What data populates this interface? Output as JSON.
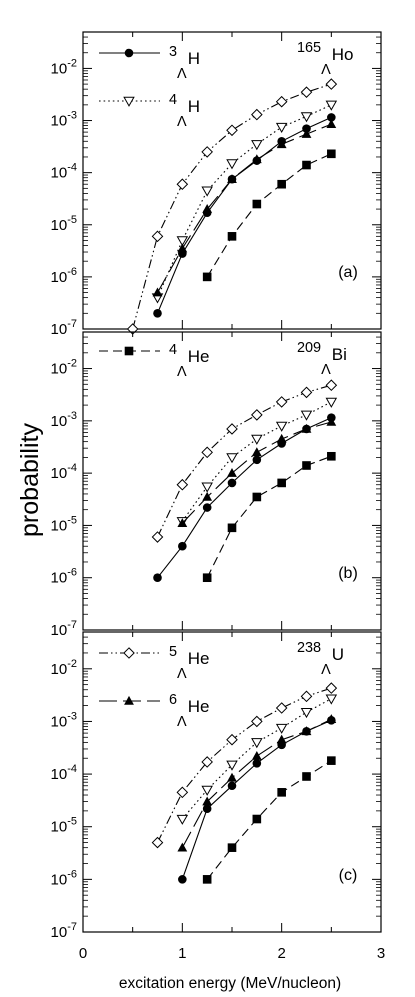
{
  "figure": {
    "ylabel": "probability",
    "xlabel": "excitation energy (MeV/nucleon)",
    "x_ticks": [
      "0",
      "1",
      "2",
      "3"
    ],
    "y_ticks": [
      {
        "mant": "10",
        "exp": "-7"
      },
      {
        "mant": "10",
        "exp": "-6"
      },
      {
        "mant": "10",
        "exp": "-5"
      },
      {
        "mant": "10",
        "exp": "-4"
      },
      {
        "mant": "10",
        "exp": "-3"
      },
      {
        "mant": "10",
        "exp": "-2"
      }
    ],
    "colors": {
      "ink": "#000000",
      "background": "#ffffff"
    }
  },
  "chart_data": [
    {
      "type": "line",
      "panel_label": "(a)",
      "nucleus": {
        "mass": "165",
        "lambda": "Λ",
        "symbol": "Ho"
      },
      "xlim": [
        0,
        3
      ],
      "ylim": [
        1e-07,
        0.05
      ],
      "yscale": "log",
      "legend": [
        {
          "series": "H3",
          "mass": "3",
          "lambda": "Λ",
          "symbol": "H"
        },
        {
          "series": "H4",
          "mass": "4",
          "lambda": "Λ",
          "symbol": "H"
        }
      ],
      "series": [
        {
          "key": "He5",
          "marker": "diamond-open",
          "dash": "dashdotdot",
          "x": [
            0.5,
            0.75,
            1.0,
            1.25,
            1.5,
            1.75,
            2.0,
            2.25,
            2.5
          ],
          "y": [
            1e-07,
            6e-06,
            6e-05,
            0.00025,
            0.00065,
            0.0013,
            0.0023,
            0.0035,
            0.005
          ]
        },
        {
          "key": "H4",
          "marker": "triangle-down-open",
          "dash": "dot",
          "x": [
            0.75,
            1.0,
            1.25,
            1.5,
            1.75,
            2.0,
            2.25,
            2.5
          ],
          "y": [
            4e-07,
            5e-06,
            4.5e-05,
            0.00015,
            0.00035,
            0.00075,
            0.0012,
            0.002
          ]
        },
        {
          "key": "He6",
          "marker": "triangle-up-filled",
          "dash": "longdash",
          "x": [
            0.75,
            1.0,
            1.25,
            1.5,
            1.75,
            2.0,
            2.25,
            2.5
          ],
          "y": [
            5e-07,
            3.5e-06,
            2e-05,
            7.5e-05,
            0.00018,
            0.00035,
            0.00055,
            0.00085
          ]
        },
        {
          "key": "H3",
          "marker": "circle-filled",
          "dash": "solid",
          "x": [
            0.75,
            1.0,
            1.25,
            1.5,
            1.75,
            2.0,
            2.25,
            2.5
          ],
          "y": [
            2e-07,
            2.8e-06,
            1.7e-05,
            7.5e-05,
            0.00017,
            0.0004,
            0.0007,
            0.00115
          ]
        },
        {
          "key": "He4",
          "marker": "square-filled",
          "dash": "dash",
          "x": [
            1.25,
            1.5,
            1.75,
            2.0,
            2.25,
            2.5
          ],
          "y": [
            1e-06,
            6e-06,
            2.5e-05,
            6e-05,
            0.00014,
            0.00023
          ]
        }
      ]
    },
    {
      "type": "line",
      "panel_label": "(b)",
      "nucleus": {
        "mass": "209",
        "lambda": "Λ",
        "symbol": "Bi"
      },
      "xlim": [
        0,
        3
      ],
      "ylim": [
        1e-07,
        0.05
      ],
      "yscale": "log",
      "legend": [
        {
          "series": "He4",
          "mass": "4",
          "lambda": "Λ",
          "symbol": "He"
        }
      ],
      "series": [
        {
          "key": "He5",
          "marker": "diamond-open",
          "dash": "dashdotdot",
          "x": [
            0.75,
            1.0,
            1.25,
            1.5,
            1.75,
            2.0,
            2.25,
            2.5
          ],
          "y": [
            6e-06,
            6e-05,
            0.00025,
            0.0007,
            0.0013,
            0.0023,
            0.0035,
            0.0048
          ]
        },
        {
          "key": "H4",
          "marker": "triangle-down-open",
          "dash": "dot",
          "x": [
            1.0,
            1.25,
            1.5,
            1.75,
            2.0,
            2.25,
            2.5
          ],
          "y": [
            1.2e-05,
            5.5e-05,
            0.0002,
            0.00045,
            0.0008,
            0.0013,
            0.0023
          ]
        },
        {
          "key": "He6",
          "marker": "triangle-up-filled",
          "dash": "longdash",
          "x": [
            1.0,
            1.25,
            1.5,
            1.75,
            2.0,
            2.25,
            2.5
          ],
          "y": [
            1.1e-05,
            3.5e-05,
            0.0001,
            0.00025,
            0.00045,
            0.0007,
            0.00095
          ]
        },
        {
          "key": "H3",
          "marker": "circle-filled",
          "dash": "solid",
          "x": [
            0.75,
            1.0,
            1.25,
            1.5,
            1.75,
            2.0,
            2.25,
            2.5
          ],
          "y": [
            1e-06,
            4e-06,
            2.2e-05,
            6.5e-05,
            0.00018,
            0.00037,
            0.0007,
            0.00115
          ]
        },
        {
          "key": "He4",
          "marker": "square-filled",
          "dash": "dash",
          "x": [
            1.25,
            1.5,
            1.75,
            2.0,
            2.25,
            2.5
          ],
          "y": [
            1e-06,
            9e-06,
            3.5e-05,
            6.5e-05,
            0.00014,
            0.00021
          ]
        }
      ]
    },
    {
      "type": "line",
      "panel_label": "(c)",
      "nucleus": {
        "mass": "238",
        "lambda": "Λ",
        "symbol": "U"
      },
      "xlim": [
        0,
        3
      ],
      "ylim": [
        1e-07,
        0.05
      ],
      "yscale": "log",
      "legend": [
        {
          "series": "He5",
          "mass": "5",
          "lambda": "Λ",
          "symbol": "He"
        },
        {
          "series": "He6",
          "mass": "6",
          "lambda": "Λ",
          "symbol": "He"
        }
      ],
      "series": [
        {
          "key": "He5",
          "marker": "diamond-open",
          "dash": "dashdotdot",
          "x": [
            0.75,
            1.0,
            1.25,
            1.5,
            1.75,
            2.0,
            2.25,
            2.5
          ],
          "y": [
            5e-06,
            4.5e-05,
            0.00017,
            0.00045,
            0.001,
            0.0018,
            0.003,
            0.0043
          ]
        },
        {
          "key": "H4",
          "marker": "triangle-down-open",
          "dash": "dot",
          "x": [
            1.0,
            1.25,
            1.5,
            1.75,
            2.0,
            2.25,
            2.5
          ],
          "y": [
            1.4e-05,
            5e-05,
            0.00015,
            0.0004,
            0.00075,
            0.0015,
            0.0027
          ]
        },
        {
          "key": "He6",
          "marker": "triangle-up-filled",
          "dash": "longdash",
          "x": [
            1.0,
            1.25,
            1.5,
            1.75,
            2.0,
            2.25,
            2.5
          ],
          "y": [
            4e-06,
            3e-05,
            8.5e-05,
            0.00022,
            0.00045,
            0.00065,
            0.0011
          ]
        },
        {
          "key": "H3",
          "marker": "circle-filled",
          "dash": "solid",
          "x": [
            1.0,
            1.25,
            1.5,
            1.75,
            2.0,
            2.25,
            2.5
          ],
          "y": [
            1e-06,
            2.2e-05,
            6e-05,
            0.00016,
            0.00036,
            0.00065,
            0.00105
          ]
        },
        {
          "key": "He4",
          "marker": "square-filled",
          "dash": "dash",
          "x": [
            1.25,
            1.5,
            1.75,
            2.0,
            2.25,
            2.5
          ],
          "y": [
            1e-06,
            4e-06,
            1.4e-05,
            4.5e-05,
            9e-05,
            0.00018
          ]
        }
      ]
    }
  ]
}
